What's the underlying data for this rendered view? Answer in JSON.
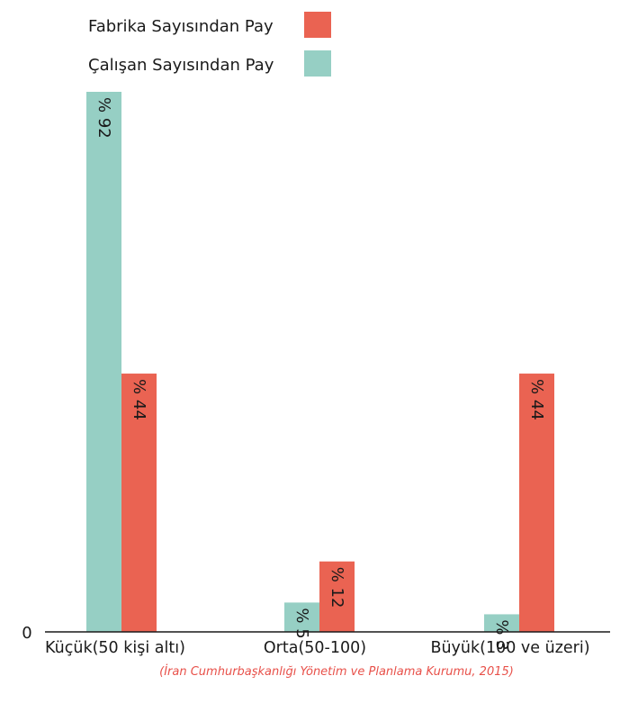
{
  "chart_data": {
    "type": "bar",
    "categories": [
      "Küçük(50 kişi altı)",
      "Orta(50-100)",
      "Büyük(100  ve üzeri)"
    ],
    "series": [
      {
        "name": "Çalışan Sayısından Pay",
        "values": [
          92,
          5,
          3
        ],
        "labels": [
          "% 92",
          "% 5",
          "% 3"
        ],
        "color": "#96cfc4"
      },
      {
        "name": "Fabrika Sayısından Pay",
        "values": [
          44,
          12,
          44
        ],
        "labels": [
          "% 44",
          "% 12",
          "% 44"
        ],
        "color": "#ea6352"
      }
    ],
    "legend": {
      "placement": "top-left",
      "order": [
        "Fabrika Sayısından Pay",
        "Çalışan Sayısından Pay"
      ]
    },
    "ylim": [
      0,
      92
    ],
    "y_tick_label": "0",
    "grid": false,
    "source_note": "(İran Cumhurbaşkanlığı Yönetim ve Planlama Kurumu, 2015)",
    "source_color": "#e8514a"
  }
}
